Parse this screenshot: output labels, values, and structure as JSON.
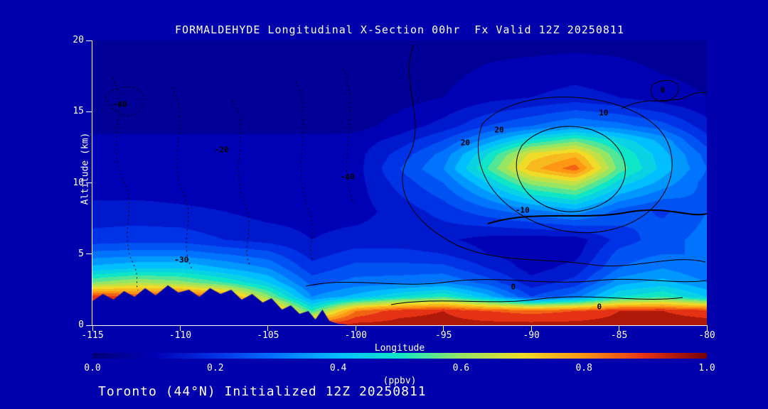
{
  "title": "FORMALDEHYDE Longitudinal X-Section 00hr  Fx Valid 12Z 20250811",
  "caption": "Toronto (44°N) Initialized 12Z 20250811",
  "colors": {
    "background": "#0000AC",
    "text": "#FFFFFF",
    "contour": "#000000",
    "colormap_stops": [
      [
        0.0,
        "#000078"
      ],
      [
        0.1,
        "#0000B4"
      ],
      [
        0.2,
        "#0032E6"
      ],
      [
        0.3,
        "#0073FF"
      ],
      [
        0.4,
        "#00BEFF"
      ],
      [
        0.5,
        "#0FE6C8"
      ],
      [
        0.6,
        "#96E664"
      ],
      [
        0.7,
        "#F0DC28"
      ],
      [
        0.8,
        "#FF9614"
      ],
      [
        0.9,
        "#E63214"
      ],
      [
        1.0,
        "#780000"
      ]
    ]
  },
  "chart_data": {
    "type": "heatmap",
    "xlabel": "Longitude",
    "ylabel": "Altitude (km)",
    "xlim": [
      -115,
      -80
    ],
    "ylim": [
      0,
      20
    ],
    "x_ticks": [
      -115,
      -110,
      -105,
      -100,
      -95,
      -90,
      -85,
      -80
    ],
    "x_tick_labels": [
      "-115",
      "-110",
      "-105",
      "-100",
      "-95",
      "-90",
      "-85",
      "-80"
    ],
    "y_ticks": [
      0,
      5,
      10,
      15,
      20
    ],
    "y_tick_labels": [
      "0",
      "5",
      "10",
      "15",
      "20"
    ],
    "units": "ppbv",
    "colorbar": {
      "label": "(ppbv)",
      "tick_labels": [
        "0.0",
        "0.2",
        "0.4",
        "0.6",
        "0.8",
        "1.0"
      ],
      "tick_values": [
        0.0,
        0.2,
        0.4,
        0.6,
        0.8,
        1.0
      ],
      "range": [
        0,
        1
      ],
      "fill_level_step": 0.05
    },
    "grid": {
      "lon": [
        -115,
        -112.5,
        -110,
        -107.5,
        -105,
        -102.5,
        -100,
        -97.5,
        -95,
        -92.5,
        -90,
        -87.5,
        -85,
        -82.5,
        -80
      ],
      "alt": [
        0,
        1,
        2,
        3,
        4,
        5,
        6,
        8,
        10,
        11,
        12,
        13,
        14,
        16,
        20
      ],
      "values": [
        [
          0.97,
          0.97,
          0.97,
          0.97,
          0.97,
          0.93,
          0.97,
          0.97,
          0.97,
          0.97,
          0.97,
          0.97,
          0.97,
          0.97,
          0.97
        ],
        [
          0.95,
          0.95,
          0.95,
          0.95,
          0.9,
          0.55,
          0.85,
          0.93,
          0.95,
          0.9,
          0.88,
          0.9,
          0.95,
          0.95,
          0.93
        ],
        [
          0.93,
          0.9,
          0.93,
          0.85,
          0.62,
          0.35,
          0.42,
          0.5,
          0.55,
          0.42,
          0.25,
          0.33,
          0.5,
          0.55,
          0.45
        ],
        [
          0.6,
          0.65,
          0.62,
          0.55,
          0.45,
          0.28,
          0.32,
          0.33,
          0.35,
          0.28,
          0.17,
          0.22,
          0.38,
          0.42,
          0.35
        ],
        [
          0.42,
          0.45,
          0.45,
          0.4,
          0.35,
          0.22,
          0.27,
          0.27,
          0.27,
          0.2,
          0.13,
          0.17,
          0.3,
          0.35,
          0.3
        ],
        [
          0.32,
          0.33,
          0.33,
          0.3,
          0.27,
          0.18,
          0.22,
          0.22,
          0.2,
          0.15,
          0.12,
          0.13,
          0.27,
          0.3,
          0.3
        ],
        [
          0.22,
          0.23,
          0.23,
          0.2,
          0.18,
          0.15,
          0.17,
          0.17,
          0.16,
          0.13,
          0.12,
          0.12,
          0.22,
          0.28,
          0.32
        ],
        [
          0.17,
          0.17,
          0.16,
          0.15,
          0.13,
          0.13,
          0.13,
          0.17,
          0.22,
          0.28,
          0.33,
          0.38,
          0.28,
          0.24,
          0.3
        ],
        [
          0.12,
          0.12,
          0.12,
          0.12,
          0.12,
          0.12,
          0.13,
          0.22,
          0.3,
          0.45,
          0.62,
          0.68,
          0.48,
          0.38,
          0.28
        ],
        [
          0.12,
          0.12,
          0.12,
          0.12,
          0.12,
          0.12,
          0.13,
          0.25,
          0.35,
          0.55,
          0.78,
          0.88,
          0.58,
          0.43,
          0.3
        ],
        [
          0.12,
          0.12,
          0.12,
          0.12,
          0.12,
          0.12,
          0.13,
          0.22,
          0.32,
          0.5,
          0.72,
          0.78,
          0.55,
          0.42,
          0.28
        ],
        [
          0.12,
          0.12,
          0.12,
          0.12,
          0.12,
          0.12,
          0.12,
          0.17,
          0.25,
          0.37,
          0.5,
          0.58,
          0.48,
          0.38,
          0.22
        ],
        [
          0.07,
          0.07,
          0.07,
          0.07,
          0.07,
          0.07,
          0.08,
          0.12,
          0.17,
          0.25,
          0.3,
          0.35,
          0.32,
          0.27,
          0.17
        ],
        [
          0.07,
          0.07,
          0.07,
          0.07,
          0.07,
          0.07,
          0.07,
          0.08,
          0.1,
          0.13,
          0.15,
          0.17,
          0.15,
          0.12,
          0.1
        ],
        [
          0.07,
          0.07,
          0.07,
          0.07,
          0.07,
          0.07,
          0.07,
          0.07,
          0.07,
          0.08,
          0.08,
          0.08,
          0.08,
          0.07,
          0.07
        ]
      ]
    },
    "terrain_profile": [
      [
        -115,
        1.7
      ],
      [
        -114.4,
        2.2
      ],
      [
        -113.8,
        1.8
      ],
      [
        -113.2,
        2.4
      ],
      [
        -112.6,
        2.0
      ],
      [
        -112,
        2.6
      ],
      [
        -111.4,
        2.1
      ],
      [
        -110.7,
        2.8
      ],
      [
        -110.1,
        2.3
      ],
      [
        -109.5,
        2.5
      ],
      [
        -108.9,
        2.0
      ],
      [
        -108.3,
        2.6
      ],
      [
        -107.7,
        2.2
      ],
      [
        -107.1,
        2.5
      ],
      [
        -106.5,
        1.8
      ],
      [
        -105.9,
        2.2
      ],
      [
        -105.3,
        1.6
      ],
      [
        -104.8,
        1.9
      ],
      [
        -104.2,
        1.1
      ],
      [
        -103.7,
        1.4
      ],
      [
        -103.2,
        0.8
      ],
      [
        -102.7,
        1.0
      ],
      [
        -102.3,
        0.4
      ],
      [
        -101.9,
        1.1
      ],
      [
        -101.5,
        0.3
      ],
      [
        -101,
        0.1
      ],
      [
        -100.5,
        0.05
      ]
    ],
    "contour_labels": [
      {
        "text": "-40",
        "x": 0.045,
        "y": 0.225
      },
      {
        "text": "-20",
        "x": 0.21,
        "y": 0.385
      },
      {
        "text": "-30",
        "x": 0.145,
        "y": 0.77
      },
      {
        "text": "-40",
        "x": 0.415,
        "y": 0.48
      },
      {
        "text": "20",
        "x": 0.607,
        "y": 0.36
      },
      {
        "text": "20",
        "x": 0.662,
        "y": 0.315
      },
      {
        "text": "10",
        "x": 0.832,
        "y": 0.255
      },
      {
        "text": "0",
        "x": 0.928,
        "y": 0.175
      },
      {
        "text": "-10",
        "x": 0.7,
        "y": 0.595
      },
      {
        "text": "0",
        "x": 0.685,
        "y": 0.865
      },
      {
        "text": "0",
        "x": 0.825,
        "y": 0.935
      }
    ]
  }
}
